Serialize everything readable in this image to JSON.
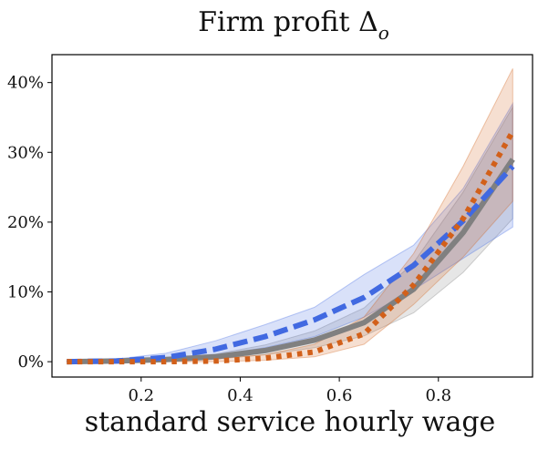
{
  "chart_data": {
    "type": "line",
    "title_main": "Firm profit Δ",
    "title_sub": "o",
    "xlabel": "standard service hourly wage",
    "ylabel": "",
    "xlim": [
      0.02,
      0.99
    ],
    "ylim": [
      -2.2,
      44
    ],
    "xticks": [
      0.2,
      0.4,
      0.6,
      0.8
    ],
    "xtick_labels": [
      "0.2",
      "0.4",
      "0.6",
      "0.8"
    ],
    "yticks": [
      0,
      10,
      20,
      30,
      40
    ],
    "ytick_labels": [
      "0%",
      "10%",
      "20%",
      "30%",
      "40%"
    ],
    "grid": false,
    "x": [
      0.05,
      0.15,
      0.25,
      0.35,
      0.45,
      0.55,
      0.65,
      0.75,
      0.85,
      0.95
    ],
    "series": [
      {
        "color": "#808080",
        "style": "solid",
        "values": [
          0.0,
          0.1,
          0.3,
          0.7,
          1.6,
          3.1,
          5.6,
          10.4,
          18.5,
          29.0
        ],
        "lower": [
          0.0,
          0.0,
          0.1,
          0.4,
          1.0,
          2.0,
          3.7,
          7.0,
          12.8,
          20.5
        ],
        "upper": [
          0.1,
          0.2,
          0.5,
          1.1,
          2.4,
          4.4,
          7.7,
          14.2,
          24.3,
          36.5
        ]
      },
      {
        "color": "#4169e1",
        "style": "dashed",
        "values": [
          0.0,
          0.1,
          0.6,
          1.8,
          3.6,
          6.0,
          9.2,
          13.8,
          20.2,
          28.0
        ],
        "lower": [
          0.0,
          0.0,
          0.2,
          0.9,
          2.0,
          3.6,
          6.4,
          10.3,
          14.8,
          19.3
        ],
        "upper": [
          0.1,
          0.4,
          1.2,
          3.0,
          5.3,
          7.8,
          12.5,
          16.7,
          24.8,
          37.0
        ]
      },
      {
        "color": "#d2601a",
        "style": "dotted",
        "values": [
          0.0,
          0.0,
          0.0,
          0.1,
          0.5,
          1.4,
          4.0,
          11.0,
          20.5,
          33.0
        ],
        "lower": [
          0.0,
          0.0,
          0.0,
          0.0,
          0.2,
          0.7,
          2.5,
          8.2,
          15.0,
          23.0
        ],
        "upper": [
          0.0,
          0.1,
          0.2,
          0.4,
          1.0,
          2.5,
          6.4,
          15.5,
          28.0,
          42.0
        ]
      }
    ]
  }
}
